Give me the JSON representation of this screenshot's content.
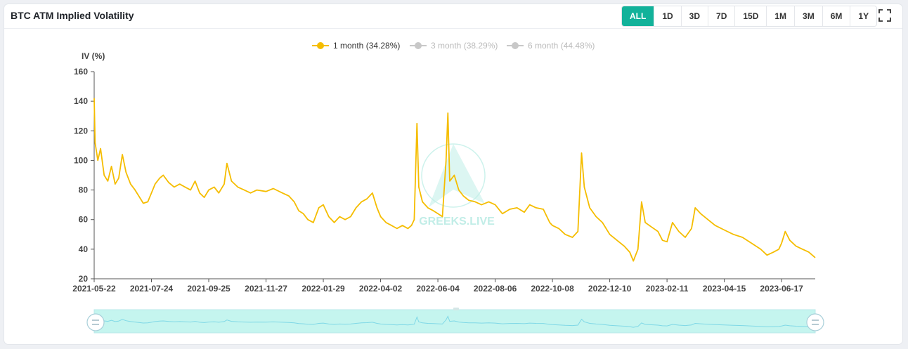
{
  "header": {
    "title": "BTC ATM Implied Volatility",
    "ranges": [
      {
        "label": "ALL",
        "active": true
      },
      {
        "label": "1D",
        "active": false
      },
      {
        "label": "3D",
        "active": false
      },
      {
        "label": "7D",
        "active": false
      },
      {
        "label": "15D",
        "active": false
      },
      {
        "label": "1M",
        "active": false
      },
      {
        "label": "3M",
        "active": false
      },
      {
        "label": "6M",
        "active": false
      },
      {
        "label": "1Y",
        "active": false
      }
    ],
    "fullscreen_icon": "fullscreen-icon"
  },
  "watermark": {
    "text": "GREEKS.LIVE"
  },
  "colors": {
    "series_active": "#f5bd00",
    "series_inactive": "#c8c8c8",
    "accent": "#12b29a",
    "slider_fill": "#c5f5ef",
    "slider_line": "#7fd8e6"
  },
  "chart_data": {
    "type": "line",
    "ylabel": "IV (%)",
    "ylim": [
      20,
      160
    ],
    "yticks": [
      20,
      40,
      60,
      80,
      100,
      120,
      140,
      160
    ],
    "xlim": [
      "2021-05-22",
      "2023-07-24"
    ],
    "xticks": [
      "2021-05-22",
      "2021-07-24",
      "2021-09-25",
      "2021-11-27",
      "2022-01-29",
      "2022-04-02",
      "2022-06-04",
      "2022-08-06",
      "2022-10-08",
      "2022-12-10",
      "2023-02-11",
      "2023-04-15",
      "2023-06-17"
    ],
    "legend_position": "top-center",
    "series": [
      {
        "name": "1 month (34.28%)",
        "visible": true,
        "points": [
          [
            "2021-05-22",
            142
          ],
          [
            "2021-05-23",
            112
          ],
          [
            "2021-05-26",
            100
          ],
          [
            "2021-05-29",
            108
          ],
          [
            "2021-06-02",
            90
          ],
          [
            "2021-06-06",
            86
          ],
          [
            "2021-06-10",
            96
          ],
          [
            "2021-06-14",
            84
          ],
          [
            "2021-06-18",
            88
          ],
          [
            "2021-06-22",
            104
          ],
          [
            "2021-06-26",
            92
          ],
          [
            "2021-07-01",
            84
          ],
          [
            "2021-07-06",
            80
          ],
          [
            "2021-07-10",
            76
          ],
          [
            "2021-07-15",
            71
          ],
          [
            "2021-07-20",
            72
          ],
          [
            "2021-07-24",
            78
          ],
          [
            "2021-07-28",
            84
          ],
          [
            "2021-08-02",
            88
          ],
          [
            "2021-08-06",
            90
          ],
          [
            "2021-08-12",
            85
          ],
          [
            "2021-08-18",
            82
          ],
          [
            "2021-08-24",
            84
          ],
          [
            "2021-08-30",
            82
          ],
          [
            "2021-09-05",
            80
          ],
          [
            "2021-09-10",
            86
          ],
          [
            "2021-09-15",
            78
          ],
          [
            "2021-09-20",
            75
          ],
          [
            "2021-09-25",
            80
          ],
          [
            "2021-10-01",
            82
          ],
          [
            "2021-10-06",
            78
          ],
          [
            "2021-10-12",
            84
          ],
          [
            "2021-10-15",
            98
          ],
          [
            "2021-10-20",
            86
          ],
          [
            "2021-10-27",
            82
          ],
          [
            "2021-11-03",
            80
          ],
          [
            "2021-11-10",
            78
          ],
          [
            "2021-11-17",
            80
          ],
          [
            "2021-11-27",
            79
          ],
          [
            "2021-12-05",
            81
          ],
          [
            "2021-12-15",
            78
          ],
          [
            "2021-12-22",
            76
          ],
          [
            "2021-12-28",
            72
          ],
          [
            "2022-01-02",
            66
          ],
          [
            "2022-01-07",
            64
          ],
          [
            "2022-01-12",
            60
          ],
          [
            "2022-01-18",
            58
          ],
          [
            "2022-01-24",
            68
          ],
          [
            "2022-01-29",
            70
          ],
          [
            "2022-02-04",
            62
          ],
          [
            "2022-02-10",
            58
          ],
          [
            "2022-02-16",
            62
          ],
          [
            "2022-02-22",
            60
          ],
          [
            "2022-02-28",
            62
          ],
          [
            "2022-03-06",
            68
          ],
          [
            "2022-03-12",
            72
          ],
          [
            "2022-03-18",
            74
          ],
          [
            "2022-03-24",
            78
          ],
          [
            "2022-03-29",
            68
          ],
          [
            "2022-04-02",
            62
          ],
          [
            "2022-04-08",
            58
          ],
          [
            "2022-04-14",
            56
          ],
          [
            "2022-04-20",
            54
          ],
          [
            "2022-04-26",
            56
          ],
          [
            "2022-05-02",
            54
          ],
          [
            "2022-05-06",
            56
          ],
          [
            "2022-05-09",
            60
          ],
          [
            "2022-05-12",
            125
          ],
          [
            "2022-05-14",
            82
          ],
          [
            "2022-05-18",
            72
          ],
          [
            "2022-05-24",
            68
          ],
          [
            "2022-05-30",
            66
          ],
          [
            "2022-06-04",
            64
          ],
          [
            "2022-06-09",
            62
          ],
          [
            "2022-06-13",
            100
          ],
          [
            "2022-06-15",
            132
          ],
          [
            "2022-06-17",
            86
          ],
          [
            "2022-06-22",
            90
          ],
          [
            "2022-06-27",
            80
          ],
          [
            "2022-07-02",
            76
          ],
          [
            "2022-07-08",
            73
          ],
          [
            "2022-07-15",
            72
          ],
          [
            "2022-07-22",
            70
          ],
          [
            "2022-07-30",
            72
          ],
          [
            "2022-08-06",
            70
          ],
          [
            "2022-08-14",
            64
          ],
          [
            "2022-08-22",
            67
          ],
          [
            "2022-08-30",
            68
          ],
          [
            "2022-09-07",
            65
          ],
          [
            "2022-09-13",
            70
          ],
          [
            "2022-09-20",
            68
          ],
          [
            "2022-09-28",
            67
          ],
          [
            "2022-10-05",
            58
          ],
          [
            "2022-10-08",
            56
          ],
          [
            "2022-10-15",
            54
          ],
          [
            "2022-10-22",
            50
          ],
          [
            "2022-10-30",
            48
          ],
          [
            "2022-11-05",
            52
          ],
          [
            "2022-11-09",
            105
          ],
          [
            "2022-11-12",
            82
          ],
          [
            "2022-11-18",
            68
          ],
          [
            "2022-11-25",
            62
          ],
          [
            "2022-12-02",
            58
          ],
          [
            "2022-12-10",
            50
          ],
          [
            "2022-12-18",
            46
          ],
          [
            "2022-12-26",
            42
          ],
          [
            "2023-01-01",
            38
          ],
          [
            "2023-01-05",
            32
          ],
          [
            "2023-01-10",
            40
          ],
          [
            "2023-01-14",
            72
          ],
          [
            "2023-01-18",
            58
          ],
          [
            "2023-01-25",
            55
          ],
          [
            "2023-02-01",
            52
          ],
          [
            "2023-02-06",
            46
          ],
          [
            "2023-02-11",
            45
          ],
          [
            "2023-02-17",
            58
          ],
          [
            "2023-02-24",
            52
          ],
          [
            "2023-03-03",
            48
          ],
          [
            "2023-03-10",
            54
          ],
          [
            "2023-03-14",
            68
          ],
          [
            "2023-03-20",
            64
          ],
          [
            "2023-03-28",
            60
          ],
          [
            "2023-04-05",
            56
          ],
          [
            "2023-04-15",
            53
          ],
          [
            "2023-04-25",
            50
          ],
          [
            "2023-05-05",
            48
          ],
          [
            "2023-05-15",
            44
          ],
          [
            "2023-05-25",
            40
          ],
          [
            "2023-06-01",
            36
          ],
          [
            "2023-06-08",
            38
          ],
          [
            "2023-06-14",
            40
          ],
          [
            "2023-06-17",
            44
          ],
          [
            "2023-06-21",
            52
          ],
          [
            "2023-06-26",
            46
          ],
          [
            "2023-07-03",
            42
          ],
          [
            "2023-07-10",
            40
          ],
          [
            "2023-07-17",
            38
          ],
          [
            "2023-07-24",
            34.28
          ]
        ]
      },
      {
        "name": "3 month (38.29%)",
        "visible": false,
        "points": []
      },
      {
        "name": "6 month (44.48%)",
        "visible": false,
        "points": []
      }
    ]
  }
}
